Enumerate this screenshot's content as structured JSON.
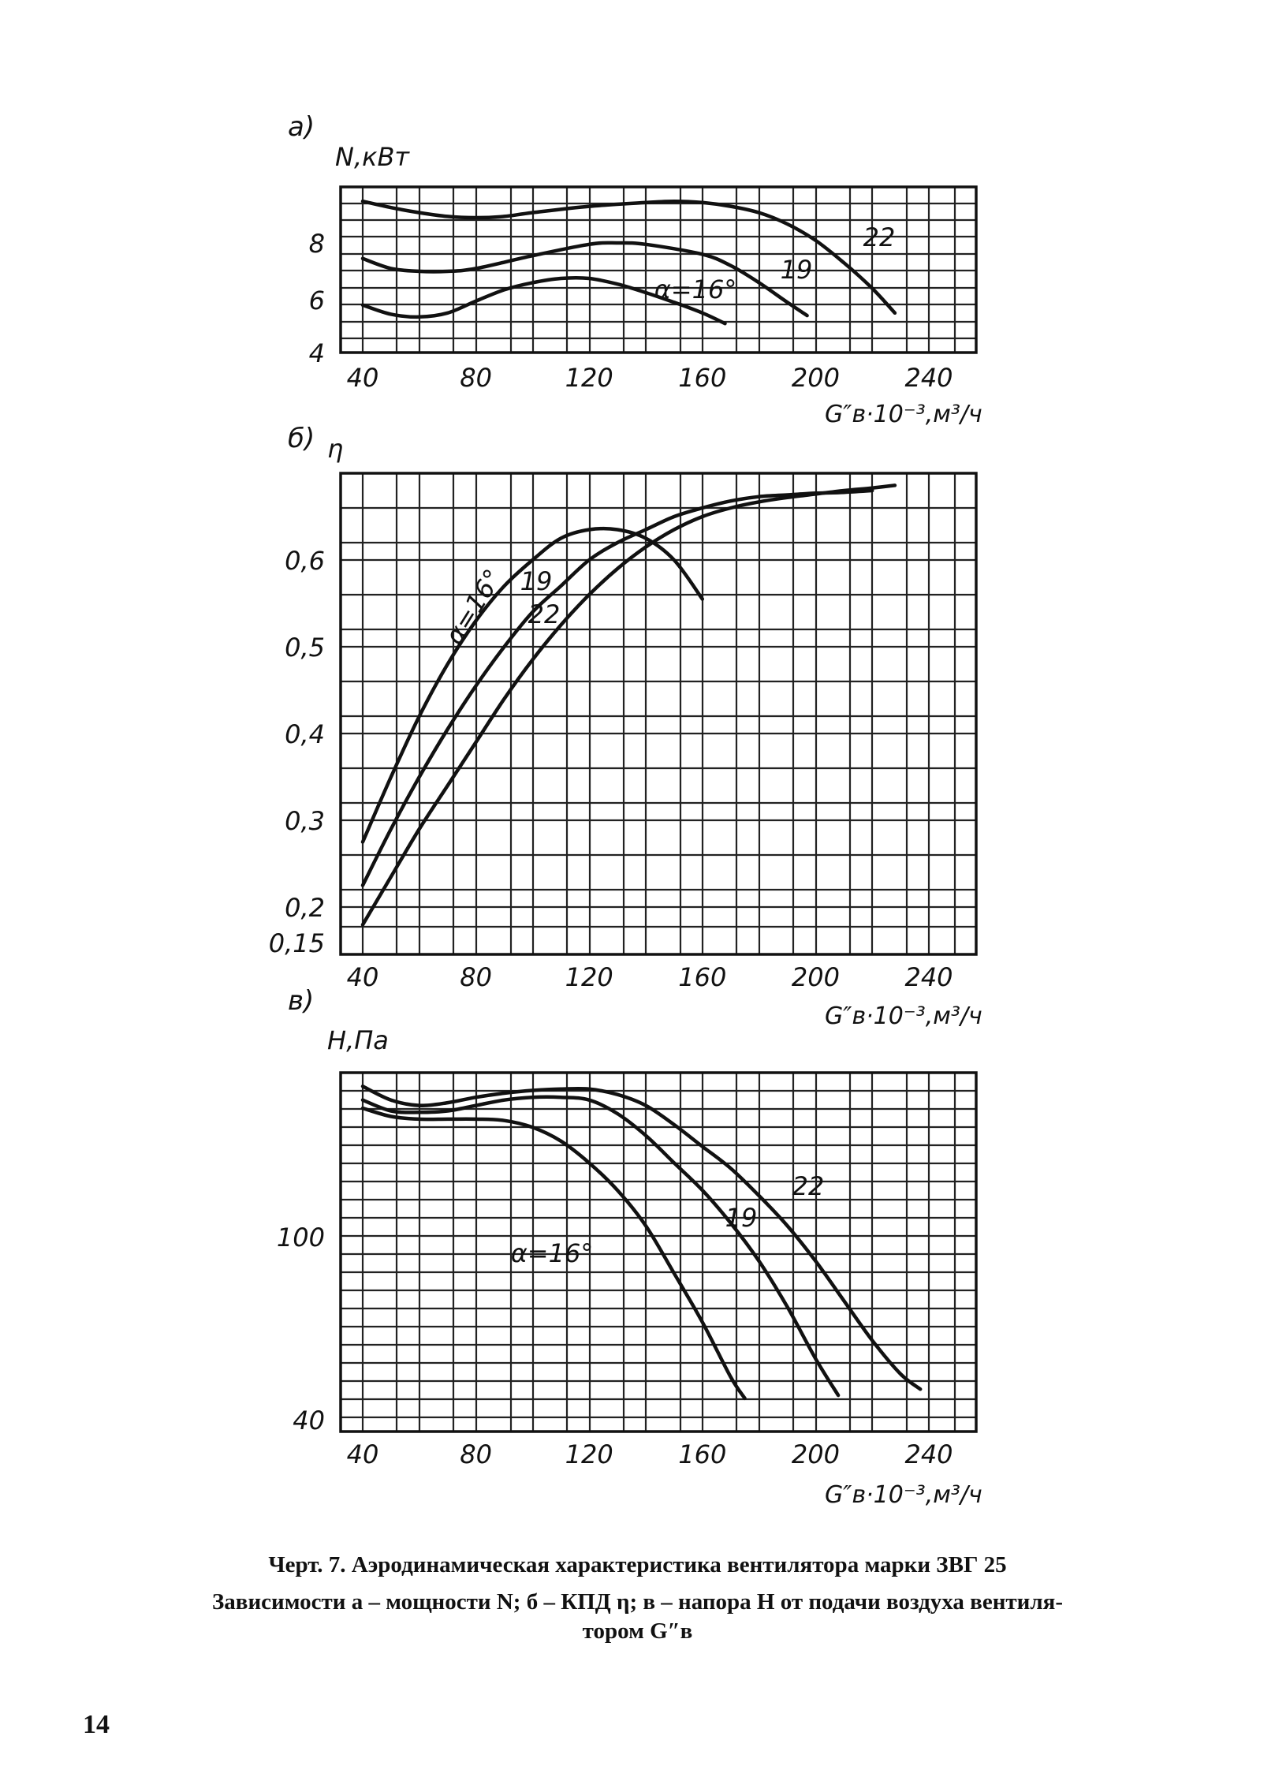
{
  "chart_data": [
    {
      "type": "line",
      "panel_label": "а)",
      "ylabel": "N,кВт",
      "xlabel": "G″в·10⁻³,м³/ч",
      "xlim": [
        40,
        250
      ],
      "ylim": [
        4,
        10
      ],
      "x_ticks": [
        40,
        80,
        120,
        160,
        200,
        240
      ],
      "y_ticks": [
        4,
        6,
        8
      ],
      "grid": true,
      "series": [
        {
          "name": "α=16°",
          "label_text": "α=16°",
          "x": [
            40,
            50,
            60,
            70,
            80,
            90,
            100,
            110,
            120,
            130,
            140,
            150,
            160,
            168
          ],
          "y": [
            5.8,
            5.45,
            5.35,
            5.5,
            5.95,
            6.35,
            6.6,
            6.75,
            6.75,
            6.55,
            6.25,
            5.9,
            5.5,
            5.1
          ]
        },
        {
          "name": "19",
          "label_text": "19",
          "x": [
            40,
            50,
            60,
            70,
            80,
            100,
            120,
            130,
            140,
            160,
            170,
            180,
            190,
            197
          ],
          "y": [
            7.45,
            7.1,
            7.0,
            7.0,
            7.1,
            7.55,
            7.95,
            8.0,
            7.95,
            7.6,
            7.2,
            6.6,
            5.9,
            5.4
          ]
        },
        {
          "name": "22",
          "label_text": "22",
          "x": [
            40,
            50,
            60,
            70,
            80,
            90,
            100,
            120,
            140,
            150,
            160,
            170,
            180,
            190,
            200,
            210,
            220,
            228
          ],
          "y": [
            9.65,
            9.4,
            9.2,
            9.05,
            9.0,
            9.05,
            9.2,
            9.45,
            9.6,
            9.65,
            9.6,
            9.45,
            9.2,
            8.75,
            8.1,
            7.3,
            6.4,
            5.5
          ]
        }
      ]
    },
    {
      "type": "line",
      "panel_label": "б)",
      "ylabel": "η",
      "xlabel": "G″в·10⁻³,м³/ч",
      "xlim": [
        40,
        250
      ],
      "ylim": [
        0.15,
        0.7
      ],
      "x_ticks": [
        40,
        80,
        120,
        160,
        200,
        240
      ],
      "y_ticks": [
        0.15,
        0.2,
        0.3,
        0.4,
        0.5,
        0.6
      ],
      "y_tick_labels": [
        "0,15",
        "0,2",
        "0,3",
        "0,4",
        "0,5",
        "0,6"
      ],
      "grid": true,
      "series": [
        {
          "name": "α=16°",
          "label_text": "α=16°",
          "x": [
            40,
            50,
            60,
            70,
            80,
            90,
            100,
            110,
            120,
            130,
            140,
            150,
            160
          ],
          "y": [
            0.275,
            0.35,
            0.42,
            0.48,
            0.53,
            0.57,
            0.6,
            0.625,
            0.635,
            0.635,
            0.625,
            0.6,
            0.555
          ]
        },
        {
          "name": "19",
          "label_text": "19",
          "x": [
            40,
            50,
            60,
            70,
            80,
            90,
            100,
            110,
            120,
            130,
            140,
            150,
            160,
            170,
            180,
            190,
            200,
            210,
            220
          ],
          "y": [
            0.225,
            0.29,
            0.35,
            0.405,
            0.455,
            0.5,
            0.54,
            0.57,
            0.6,
            0.62,
            0.635,
            0.65,
            0.66,
            0.668,
            0.673,
            0.675,
            0.677,
            0.678,
            0.68
          ]
        },
        {
          "name": "22",
          "label_text": "22",
          "x": [
            40,
            50,
            60,
            70,
            80,
            90,
            100,
            110,
            120,
            130,
            140,
            150,
            160,
            170,
            180,
            190,
            200,
            210,
            220,
            228
          ],
          "y": [
            0.175,
            0.235,
            0.29,
            0.34,
            0.39,
            0.44,
            0.485,
            0.525,
            0.56,
            0.59,
            0.615,
            0.635,
            0.65,
            0.66,
            0.667,
            0.672,
            0.676,
            0.68,
            0.683,
            0.686
          ]
        }
      ]
    },
    {
      "type": "line",
      "panel_label": "в)",
      "ylabel": "H,Па",
      "xlabel": "G″в·10⁻³,м³/ч",
      "xlim": [
        40,
        250
      ],
      "ylim": [
        40,
        160
      ],
      "x_ticks": [
        40,
        80,
        120,
        160,
        200,
        240
      ],
      "y_ticks": [
        40,
        100
      ],
      "grid": true,
      "series": [
        {
          "name": "α=16°",
          "label_text": "α=16°",
          "x": [
            40,
            50,
            60,
            70,
            80,
            90,
            100,
            110,
            120,
            130,
            140,
            150,
            160,
            170,
            175
          ],
          "y": [
            147,
            144,
            143,
            143,
            143,
            142.5,
            140,
            135,
            127,
            117,
            104,
            88,
            72,
            54,
            47
          ]
        },
        {
          "name": "19",
          "label_text": "19",
          "x": [
            40,
            50,
            60,
            70,
            80,
            90,
            100,
            110,
            120,
            130,
            140,
            150,
            160,
            170,
            180,
            190,
            200,
            208
          ],
          "y": [
            150,
            146,
            145.5,
            146,
            148,
            150,
            151,
            151,
            150,
            145,
            137,
            127,
            117,
            105,
            92,
            77,
            60,
            48
          ]
        },
        {
          "name": "22",
          "label_text": "22",
          "x": [
            40,
            50,
            60,
            70,
            80,
            90,
            100,
            110,
            120,
            130,
            140,
            150,
            160,
            170,
            180,
            190,
            200,
            210,
            220,
            230,
            237
          ],
          "y": [
            155,
            150,
            148,
            149,
            151,
            152.5,
            153.5,
            154,
            154,
            152,
            148,
            141,
            133,
            125,
            115,
            104,
            92,
            79,
            66,
            55,
            50
          ]
        }
      ]
    }
  ],
  "caption": {
    "title": "Черт. 7. Аэродинамическая характеристика вентилятора марки ЗВГ 25",
    "line1": "Зависимости а – мощности N; б – КПД η; в – напора H от подачи воздуха вентиля-",
    "line2": "тором G″в"
  },
  "page_number": "14"
}
